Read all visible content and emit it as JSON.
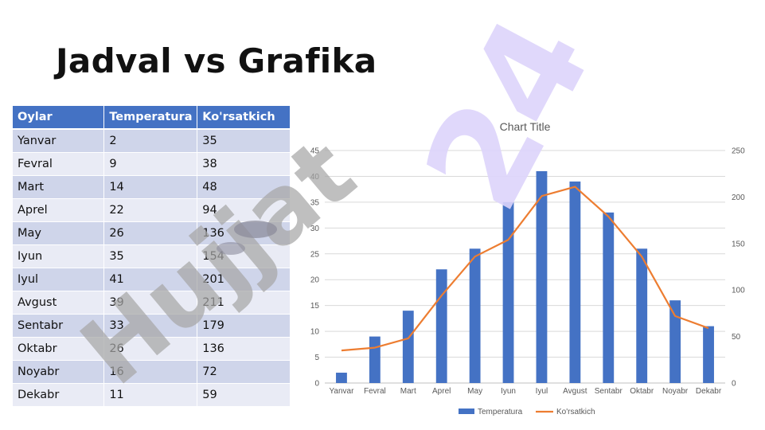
{
  "slide": {
    "title": "Jadval vs Grafika"
  },
  "table": {
    "headers": [
      "Oylar",
      "Temperatura",
      "Ko'rsatkich"
    ],
    "rows": [
      [
        "Yanvar",
        "2",
        "35"
      ],
      [
        "Fevral",
        "9",
        "38"
      ],
      [
        "Mart",
        "14",
        "48"
      ],
      [
        "Aprel",
        "22",
        "94"
      ],
      [
        "May",
        "26",
        "136"
      ],
      [
        "Iyun",
        "35",
        "154"
      ],
      [
        "Iyul",
        "41",
        "201"
      ],
      [
        "Avgust",
        "39",
        "211"
      ],
      [
        "Sentabr",
        "33",
        "179"
      ],
      [
        "Oktabr",
        "26",
        "136"
      ],
      [
        "Noyabr",
        "16",
        "72"
      ],
      [
        "Dekabr",
        "11",
        "59"
      ]
    ]
  },
  "watermark": {
    "text_purple": "24",
    "text_gray": "Hujjat"
  },
  "colors": {
    "header_bg": "#4472c4",
    "row_odd": "#cfd5ea",
    "row_even": "#e9ebf5",
    "bar": "#4472c4",
    "line": "#ed7d31",
    "watermark_purple": "#ddd4fb",
    "watermark_gray": "#a6a6a6"
  },
  "chart_data": {
    "type": "bar",
    "title": "Chart Title",
    "categories": [
      "Yanvar",
      "Fevral",
      "Mart",
      "Aprel",
      "May",
      "Iyun",
      "Iyul",
      "Avgust",
      "Sentabr",
      "Oktabr",
      "Noyabr",
      "Dekabr"
    ],
    "series": [
      {
        "name": "Temperatura",
        "type": "bar",
        "axis": "left",
        "values": [
          2,
          9,
          14,
          22,
          26,
          35,
          41,
          39,
          33,
          26,
          16,
          11
        ]
      },
      {
        "name": "Ko'rsatkich",
        "type": "line",
        "axis": "right",
        "values": [
          35,
          38,
          48,
          94,
          136,
          154,
          201,
          211,
          179,
          136,
          72,
          59
        ]
      }
    ],
    "y_left": {
      "min": 0,
      "max": 45,
      "step": 5,
      "ticks": [
        "0",
        "5",
        "10",
        "15",
        "20",
        "25",
        "30",
        "35",
        "40",
        "45"
      ]
    },
    "y_right": {
      "min": 0,
      "max": 250,
      "step": 50,
      "ticks": [
        "0",
        "50",
        "100",
        "150",
        "200",
        "250"
      ]
    },
    "grid": true,
    "legend": "bottom"
  }
}
